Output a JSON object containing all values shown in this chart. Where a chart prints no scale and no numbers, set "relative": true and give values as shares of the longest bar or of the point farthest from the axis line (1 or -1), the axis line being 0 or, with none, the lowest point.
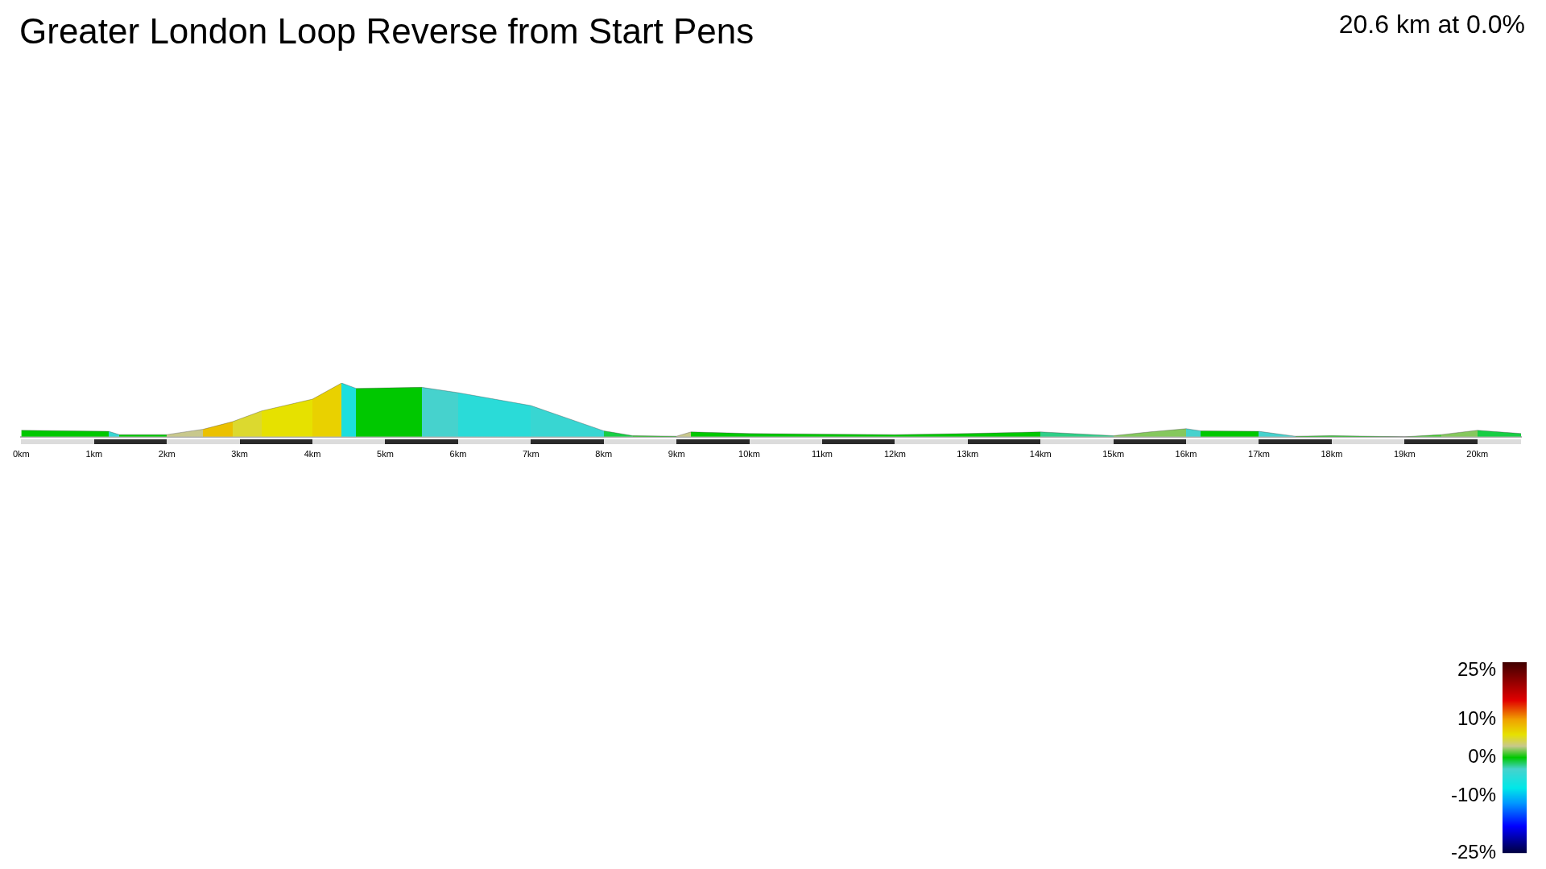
{
  "chart_data": {
    "type": "area",
    "title": "Greater London Loop Reverse from Start Pens",
    "annotations": [
      "20.6 km at 0.0%"
    ],
    "relative": true,
    "x": [
      0,
      1.2,
      1.35,
      2.0,
      2.5,
      2.9,
      3.3,
      4.0,
      4.4,
      4.6,
      5.5,
      6.0,
      7.0,
      8.0,
      8.4,
      9.0,
      9.2,
      10.0,
      12.0,
      13.0,
      14.0,
      15.0,
      15.5,
      16.0,
      16.2,
      17.0,
      17.5,
      18.0,
      19.0,
      19.5,
      20.0,
      20.3,
      20.6
    ],
    "values": [
      0.12,
      0.1,
      0.04,
      0.04,
      0.14,
      0.28,
      0.48,
      0.7,
      1.0,
      0.9,
      0.92,
      0.82,
      0.58,
      0.11,
      0.02,
      0.01,
      0.09,
      0.06,
      0.04,
      0.06,
      0.09,
      0.02,
      0.09,
      0.15,
      0.11,
      0.1,
      0.01,
      0.02,
      0,
      0.04,
      0.12,
      0.09,
      0.06
    ],
    "colors": [
      "#00c800",
      "#00c800",
      "#38d6d2",
      "#00c800",
      "#c8c88c",
      "#ebc100",
      "#dcd92f",
      "#e6e100",
      "#e9d100",
      "#1cdfdd",
      "#00c800",
      "#46d2cd",
      "#2adbd8",
      "#38d6d2",
      "#17ce44",
      "#00c800",
      "#c8c88c",
      "#00c800",
      "#00c800",
      "#00c800",
      "#00c800",
      "#2fcf89",
      "#85c85d",
      "#85c85d",
      "#46d2cd",
      "#00c800",
      "#46d2cd",
      "#00c800",
      "#00c800",
      "#43c82f",
      "#85c85d",
      "#17ce44",
      "#17ce44"
    ],
    "xlim": [
      0,
      20.6
    ],
    "xticks": [
      {
        "value": 0,
        "label": "0km"
      },
      {
        "value": 1,
        "label": "1km"
      },
      {
        "value": 2,
        "label": "2km"
      },
      {
        "value": 3,
        "label": "3km"
      },
      {
        "value": 4,
        "label": "4km"
      },
      {
        "value": 5,
        "label": "5km"
      },
      {
        "value": 6,
        "label": "6km"
      },
      {
        "value": 7,
        "label": "7km"
      },
      {
        "value": 8,
        "label": "8km"
      },
      {
        "value": 9,
        "label": "9km"
      },
      {
        "value": 10,
        "label": "10km"
      },
      {
        "value": 11,
        "label": "11km"
      },
      {
        "value": 12,
        "label": "12km"
      },
      {
        "value": 13,
        "label": "13km"
      },
      {
        "value": 14,
        "label": "14km"
      },
      {
        "value": 15,
        "label": "15km"
      },
      {
        "value": 16,
        "label": "16km"
      },
      {
        "value": 17,
        "label": "17km"
      },
      {
        "value": 18,
        "label": "18km"
      },
      {
        "value": 19,
        "label": "19km"
      },
      {
        "value": 20,
        "label": "20km"
      }
    ],
    "clim": [
      -25,
      25
    ],
    "cticks": [
      {
        "value": 25,
        "label": "25%"
      },
      {
        "value": 10,
        "label": "10%"
      },
      {
        "value": 0,
        "label": "0%"
      },
      {
        "value": -10,
        "label": "-10%"
      },
      {
        "value": -25,
        "label": "-25%"
      }
    ],
    "grid": false,
    "legend": false
  }
}
